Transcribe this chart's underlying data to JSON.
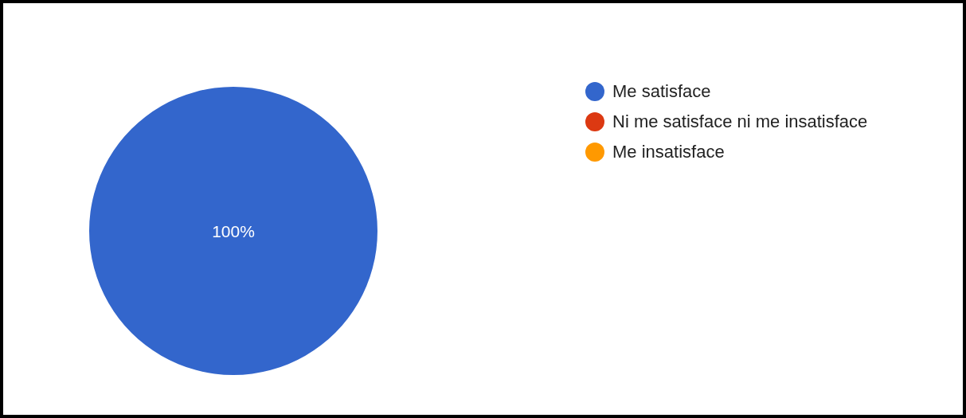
{
  "chart_data": {
    "type": "pie",
    "categories": [
      "Me satisface",
      "Ni me satisface ni me insatisface",
      "Me insatisface"
    ],
    "values": [
      100,
      0,
      0
    ],
    "colors": [
      "#3366cc",
      "#dc3912",
      "#ff9900"
    ],
    "value_labels": [
      "100%",
      null,
      null
    ],
    "legend": "top right"
  }
}
